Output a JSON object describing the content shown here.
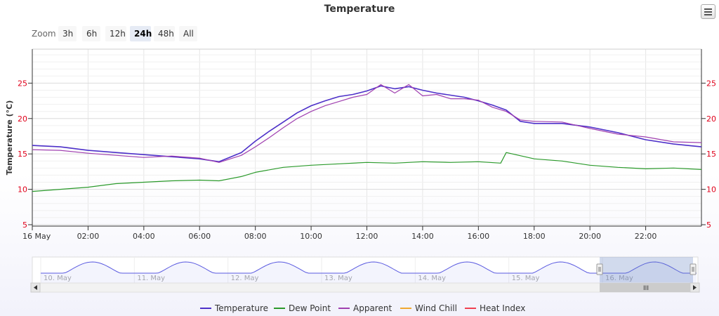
{
  "chart_data": {
    "type": "line",
    "title": "Temperature",
    "ylabel": "Temperature (°C)",
    "ylim": [
      4.8,
      29.8
    ],
    "yticks": [
      5,
      10,
      15,
      20,
      25
    ],
    "x_range": [
      0,
      24
    ],
    "xticks": [
      {
        "h": 0,
        "label": "16 May"
      },
      {
        "h": 2,
        "label": "02:00"
      },
      {
        "h": 4,
        "label": "04:00"
      },
      {
        "h": 6,
        "label": "06:00"
      },
      {
        "h": 8,
        "label": "08:00"
      },
      {
        "h": 10,
        "label": "10:00"
      },
      {
        "h": 12,
        "label": "12:00"
      },
      {
        "h": 14,
        "label": "14:00"
      },
      {
        "h": 16,
        "label": "16:00"
      },
      {
        "h": 18,
        "label": "18:00"
      },
      {
        "h": 20,
        "label": "20:00"
      },
      {
        "h": 22,
        "label": "22:00"
      }
    ],
    "series": [
      {
        "name": "Temperature",
        "color": "#4d30c9",
        "points": [
          [
            0,
            16.2
          ],
          [
            1,
            16.0
          ],
          [
            2,
            15.5
          ],
          [
            3,
            15.2
          ],
          [
            4,
            14.9
          ],
          [
            5,
            14.6
          ],
          [
            6,
            14.3
          ],
          [
            6.7,
            13.9
          ],
          [
            7.5,
            15.2
          ],
          [
            8,
            16.8
          ],
          [
            8.5,
            18.2
          ],
          [
            9,
            19.5
          ],
          [
            9.5,
            20.8
          ],
          [
            10,
            21.8
          ],
          [
            10.5,
            22.5
          ],
          [
            11,
            23.1
          ],
          [
            11.5,
            23.4
          ],
          [
            12,
            23.9
          ],
          [
            12.5,
            24.6
          ],
          [
            13,
            24.2
          ],
          [
            13.5,
            24.5
          ],
          [
            14,
            24.0
          ],
          [
            14.5,
            23.6
          ],
          [
            15,
            23.3
          ],
          [
            15.5,
            23.0
          ],
          [
            16,
            22.5
          ],
          [
            16.5,
            21.9
          ],
          [
            17,
            21.2
          ],
          [
            17.5,
            19.6
          ],
          [
            18,
            19.3
          ],
          [
            19,
            19.3
          ],
          [
            20,
            18.8
          ],
          [
            21,
            18.0
          ],
          [
            22,
            17.0
          ],
          [
            23,
            16.4
          ],
          [
            24,
            16.0
          ]
        ]
      },
      {
        "name": "Dew Point",
        "color": "#2b9a2b",
        "points": [
          [
            0,
            9.7
          ],
          [
            1,
            10.0
          ],
          [
            2,
            10.3
          ],
          [
            3,
            10.8
          ],
          [
            4,
            11.0
          ],
          [
            5,
            11.2
          ],
          [
            6,
            11.3
          ],
          [
            6.7,
            11.2
          ],
          [
            7.5,
            11.8
          ],
          [
            8,
            12.4
          ],
          [
            9,
            13.1
          ],
          [
            10,
            13.4
          ],
          [
            11,
            13.6
          ],
          [
            12,
            13.8
          ],
          [
            13,
            13.7
          ],
          [
            14,
            13.9
          ],
          [
            15,
            13.8
          ],
          [
            16,
            13.9
          ],
          [
            16.8,
            13.7
          ],
          [
            17,
            15.2
          ],
          [
            18,
            14.3
          ],
          [
            19,
            14.0
          ],
          [
            20,
            13.4
          ],
          [
            21,
            13.1
          ],
          [
            22,
            12.9
          ],
          [
            23,
            13.0
          ],
          [
            24,
            12.8
          ]
        ]
      },
      {
        "name": "Apparent",
        "color": "#a040b0",
        "points": [
          [
            0,
            15.6
          ],
          [
            1,
            15.5
          ],
          [
            2,
            15.1
          ],
          [
            3,
            14.8
          ],
          [
            4,
            14.5
          ],
          [
            5,
            14.7
          ],
          [
            6,
            14.4
          ],
          [
            6.7,
            13.8
          ],
          [
            7.5,
            14.8
          ],
          [
            8,
            16.0
          ],
          [
            8.5,
            17.3
          ],
          [
            9,
            18.7
          ],
          [
            9.5,
            20.0
          ],
          [
            10,
            21.0
          ],
          [
            10.5,
            21.8
          ],
          [
            11,
            22.4
          ],
          [
            11.5,
            23.0
          ],
          [
            12,
            23.4
          ],
          [
            12.5,
            24.8
          ],
          [
            13,
            23.6
          ],
          [
            13.5,
            24.8
          ],
          [
            14,
            23.2
          ],
          [
            14.5,
            23.4
          ],
          [
            15,
            22.8
          ],
          [
            15.5,
            22.8
          ],
          [
            16,
            22.6
          ],
          [
            16.5,
            21.6
          ],
          [
            17,
            21.0
          ],
          [
            17.5,
            19.8
          ],
          [
            18,
            19.6
          ],
          [
            19,
            19.5
          ],
          [
            20,
            18.6
          ],
          [
            21,
            17.8
          ],
          [
            22,
            17.4
          ],
          [
            23,
            16.7
          ],
          [
            24,
            16.6
          ]
        ]
      },
      {
        "name": "Wind Chill",
        "color": "#f0a830",
        "points": []
      },
      {
        "name": "Heat Index",
        "color": "#f04050",
        "points": []
      }
    ],
    "navigator": {
      "labels": [
        "10. May",
        "11. May",
        "12. May",
        "13. May",
        "14. May",
        "15. May",
        "16. May"
      ],
      "selected_range": "16. May"
    },
    "legend_position": "bottom-center"
  },
  "zoom": {
    "label": "Zoom",
    "buttons": [
      "3h",
      "6h",
      "12h",
      "24h",
      "48h",
      "All"
    ],
    "active": "24h"
  },
  "scrollbar_grip": "III"
}
